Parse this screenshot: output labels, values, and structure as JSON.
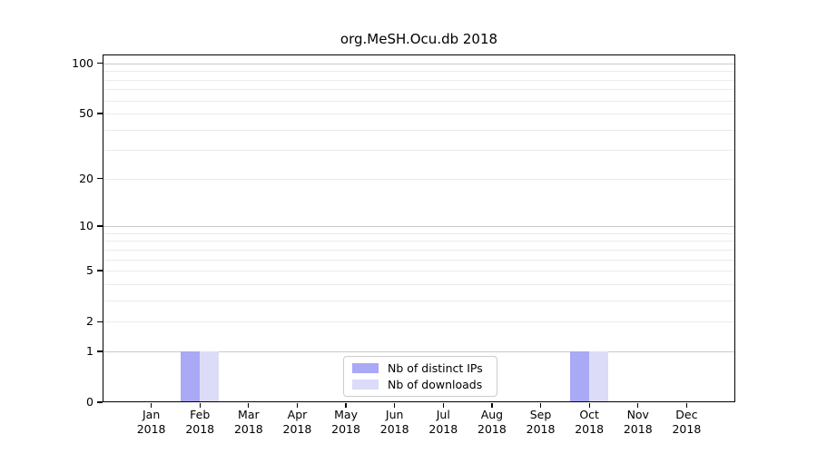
{
  "chart_data": {
    "type": "bar",
    "title": "org.MeSH.Ocu.db 2018",
    "categories": [
      "Jan",
      "Feb",
      "Mar",
      "Apr",
      "May",
      "Jun",
      "Jul",
      "Aug",
      "Sep",
      "Oct",
      "Nov",
      "Dec"
    ],
    "category_year": "2018",
    "series": [
      {
        "name": "Nb of distinct IPs",
        "color": "#a9a9f5",
        "values": [
          0,
          1,
          0,
          0,
          0,
          0,
          0,
          0,
          0,
          1,
          0,
          0
        ]
      },
      {
        "name": "Nb of downloads",
        "color": "#dcdcf8",
        "values": [
          0,
          1,
          0,
          0,
          0,
          0,
          0,
          0,
          0,
          1,
          0,
          0
        ]
      }
    ],
    "yscale": "log1p",
    "yticks": [
      0,
      1,
      2,
      5,
      10,
      20,
      50,
      100
    ],
    "ylim": [
      0,
      113
    ],
    "grid": {
      "major": [
        1,
        10,
        100
      ],
      "minor": [
        2,
        3,
        4,
        5,
        6,
        7,
        8,
        9,
        20,
        30,
        40,
        50,
        60,
        70,
        80,
        90
      ],
      "major_color": "#c9c9c9",
      "minor_color": "#ebebeb"
    },
    "legend_position": "lower center",
    "axis_color": "#000000",
    "background_color": "#ffffff"
  }
}
